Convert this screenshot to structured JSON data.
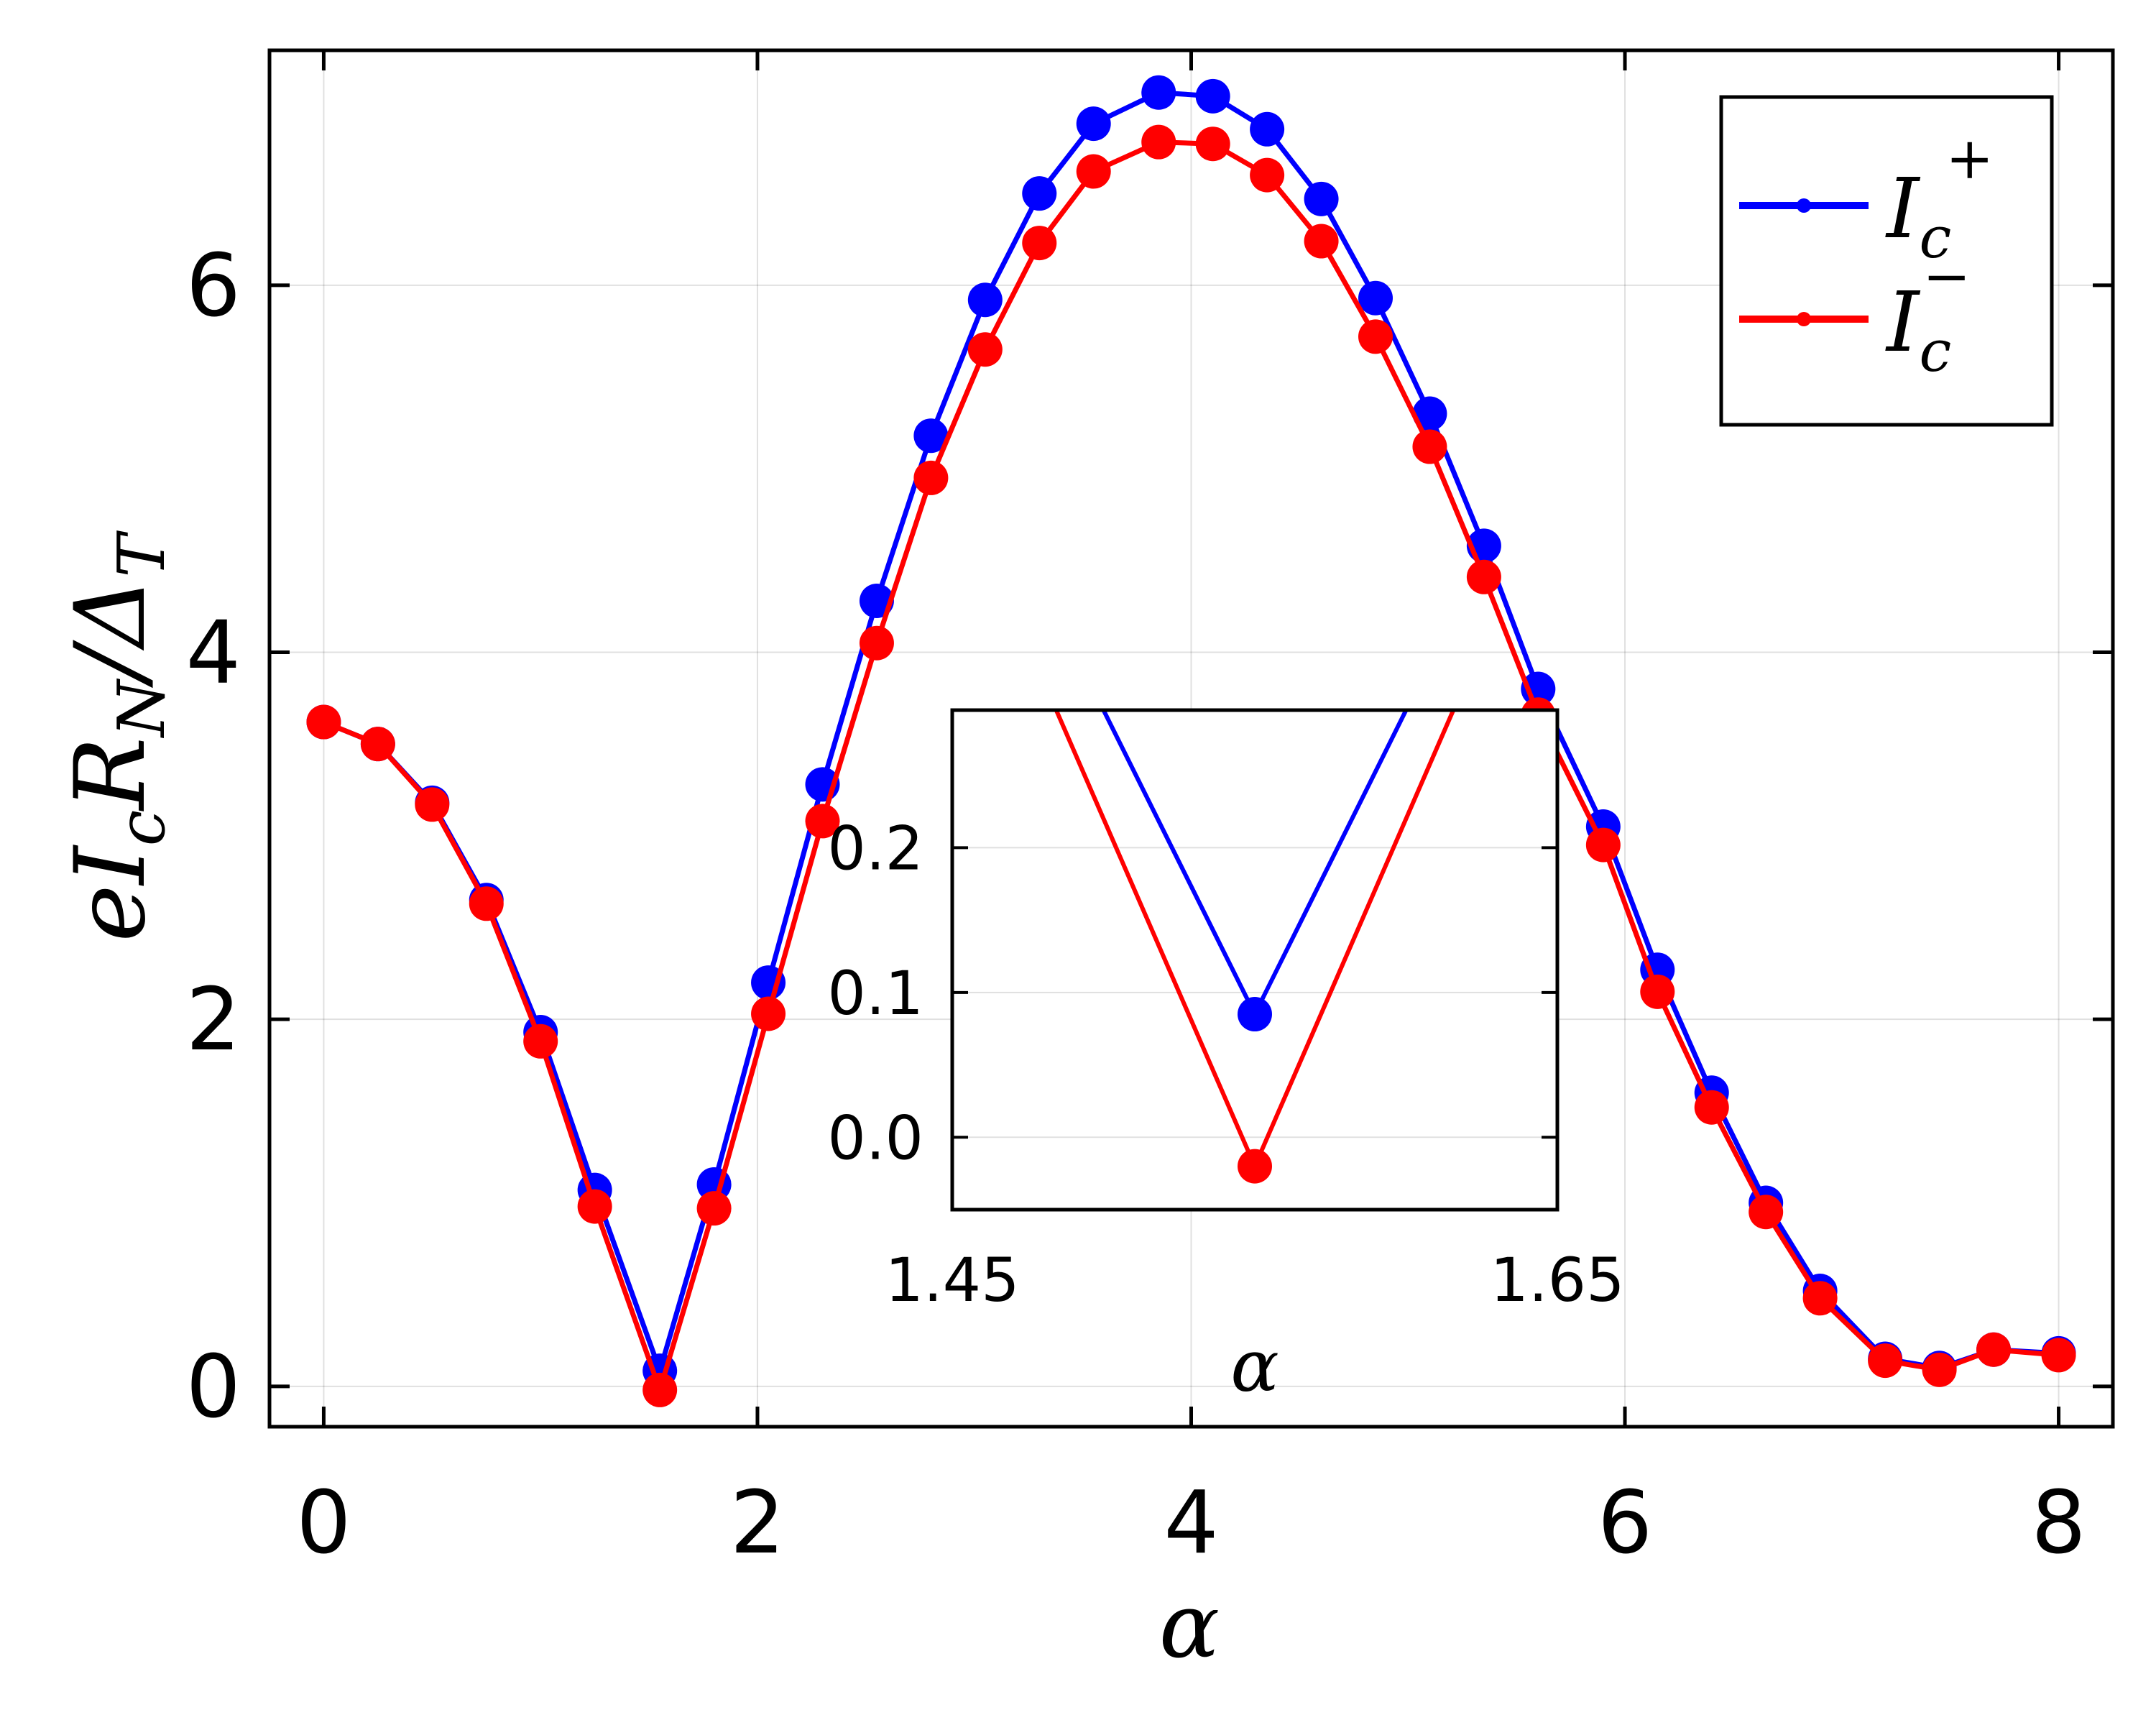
{
  "chart_data": [
    {
      "type": "line",
      "x": [
        0,
        0.25,
        0.5,
        0.75,
        1.0,
        1.25,
        1.55,
        1.8,
        2.05,
        2.3,
        2.55,
        2.8,
        3.05,
        3.3,
        3.55,
        3.85,
        4.1,
        4.35,
        4.6,
        4.85,
        5.1,
        5.35,
        5.6,
        5.9,
        6.15,
        6.4,
        6.65,
        6.9,
        7.2,
        7.45,
        7.7,
        8.0
      ],
      "series": [
        {
          "name": "I_c^+",
          "color": "#0000ff",
          "values": [
            3.62,
            3.5,
            3.18,
            2.65,
            1.93,
            1.07,
            0.085,
            1.1,
            2.2,
            3.28,
            4.28,
            5.18,
            5.92,
            6.5,
            6.88,
            7.05,
            7.03,
            6.85,
            6.47,
            5.93,
            5.3,
            4.58,
            3.8,
            3.05,
            2.27,
            1.6,
            1.0,
            0.52,
            0.15,
            0.1,
            0.2,
            0.18
          ]
        },
        {
          "name": "I_c^-",
          "color": "#ff0000",
          "values": [
            3.62,
            3.5,
            3.17,
            2.63,
            1.88,
            0.98,
            -0.02,
            0.97,
            2.03,
            3.08,
            4.05,
            4.95,
            5.65,
            6.23,
            6.62,
            6.78,
            6.77,
            6.6,
            6.24,
            5.72,
            5.12,
            4.41,
            3.66,
            2.95,
            2.15,
            1.52,
            0.95,
            0.48,
            0.14,
            0.09,
            0.2,
            0.17
          ]
        }
      ],
      "xlabel": "α",
      "ylabel": "eI_cR_N/Δ_T",
      "xlim": [
        -0.25,
        8.25
      ],
      "ylim": [
        -0.22,
        7.28
      ],
      "xticks": [
        "0",
        "2",
        "4",
        "6",
        "8"
      ],
      "yticks": [
        "0",
        "2",
        "4",
        "6"
      ],
      "grid": true,
      "legend": {
        "placement": "top-right",
        "entries": [
          "I_c^+",
          "I_c^-"
        ]
      }
    },
    {
      "type": "line",
      "x": [
        1.45,
        1.55,
        1.65
      ],
      "series": [
        {
          "name": "I_c^+",
          "color": "#0000ff",
          "values": [
            0.505,
            0.085,
            0.505
          ]
        },
        {
          "name": "I_c^-",
          "color": "#ff0000",
          "values": [
            0.46,
            -0.02,
            0.46
          ]
        }
      ],
      "points": [
        {
          "series": 0,
          "x": 1.55,
          "y": 0.085
        },
        {
          "series": 1,
          "x": 1.55,
          "y": -0.02
        }
      ],
      "xlabel": "α",
      "xlim": [
        1.45,
        1.65
      ],
      "ylim": [
        -0.05,
        0.295
      ],
      "xticks": [
        "1.45",
        "1.65"
      ],
      "yticks": [
        "0.0",
        "0.1",
        "0.2"
      ],
      "grid": true,
      "placement": "inset"
    }
  ]
}
